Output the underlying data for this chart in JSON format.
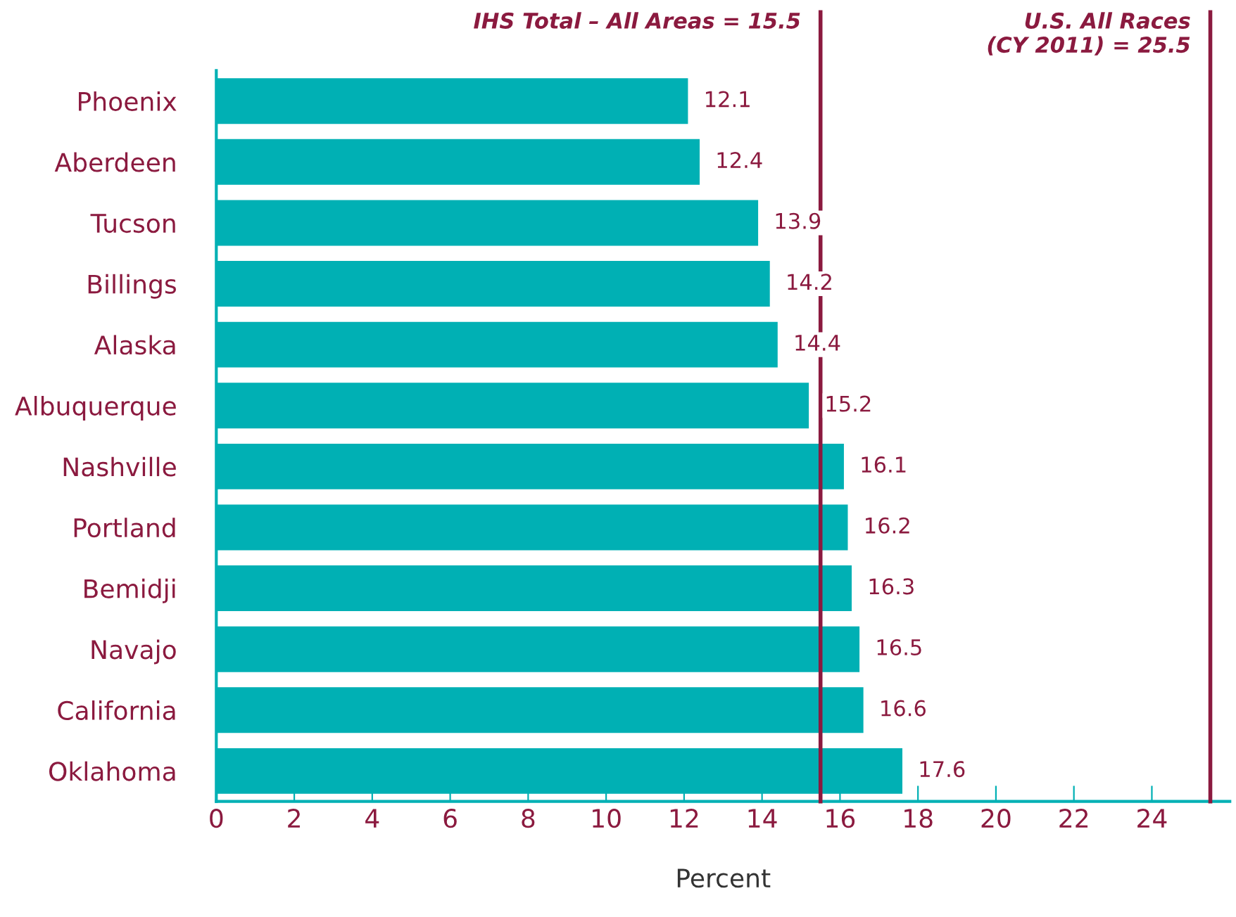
{
  "chart_data": {
    "type": "bar",
    "orientation": "horizontal",
    "xlabel": "Percent",
    "categories": [
      "Phoenix",
      "Aberdeen",
      "Tucson",
      "Billings",
      "Alaska",
      "Albuquerque",
      "Nashville",
      "Portland",
      "Bemidji",
      "Navajo",
      "California",
      "Oklahoma"
    ],
    "values": [
      12.1,
      12.4,
      13.9,
      14.2,
      14.4,
      15.2,
      16.1,
      16.2,
      16.3,
      16.5,
      16.6,
      17.6
    ],
    "color": "#00b0b4",
    "data_labels": true,
    "xlim": [
      0,
      26
    ],
    "xticks": [
      0,
      2,
      4,
      6,
      8,
      10,
      12,
      14,
      16,
      18,
      20,
      22,
      24
    ],
    "grid": false,
    "legend": false,
    "ref_lines": [
      {
        "axis": "x",
        "value": 15.5,
        "label": "IHS Total – All Areas = 15.5",
        "color": "#8b1a3f"
      },
      {
        "axis": "x",
        "value": 25.5,
        "label": "U.S. All Races\n(CY 2011) = 25.5",
        "color": "#8b1a3f"
      }
    ]
  }
}
